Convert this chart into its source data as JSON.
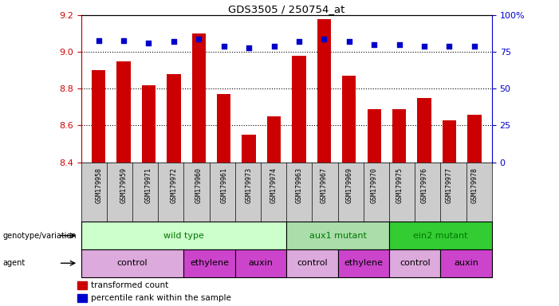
{
  "title": "GDS3505 / 250754_at",
  "samples": [
    "GSM179958",
    "GSM179959",
    "GSM179971",
    "GSM179972",
    "GSM179960",
    "GSM179961",
    "GSM179973",
    "GSM179974",
    "GSM179963",
    "GSM179967",
    "GSM179969",
    "GSM179970",
    "GSM179975",
    "GSM179976",
    "GSM179977",
    "GSM179978"
  ],
  "transformed_counts": [
    8.9,
    8.95,
    8.82,
    8.88,
    9.1,
    8.77,
    8.55,
    8.65,
    8.98,
    9.18,
    8.87,
    8.69,
    8.69,
    8.75,
    8.63,
    8.66
  ],
  "percentile_ranks": [
    83,
    83,
    81,
    82,
    84,
    79,
    78,
    79,
    82,
    84,
    82,
    80,
    80,
    79,
    79,
    79
  ],
  "ylim_left": [
    8.4,
    9.2
  ],
  "ylim_right": [
    0,
    100
  ],
  "yticks_left": [
    8.4,
    8.6,
    8.8,
    9.0,
    9.2
  ],
  "yticks_right": [
    0,
    25,
    50,
    75,
    100
  ],
  "bar_color": "#cc0000",
  "dot_color": "#0000cc",
  "xlabel_color": "#cc0000",
  "right_axis_color": "#0000cc",
  "group_defs": [
    {
      "label": "wild type",
      "start": 0,
      "end": 8,
      "color": "#ccffcc",
      "text_color": "#007700"
    },
    {
      "label": "aux1 mutant",
      "start": 8,
      "end": 12,
      "color": "#aaddaa",
      "text_color": "#007700"
    },
    {
      "label": "ein2 mutant",
      "start": 12,
      "end": 16,
      "color": "#33cc33",
      "text_color": "#007700"
    }
  ],
  "agent_defs": [
    {
      "label": "control",
      "start": 0,
      "end": 4,
      "color": "#ddaadd"
    },
    {
      "label": "ethylene",
      "start": 4,
      "end": 6,
      "color": "#cc44cc"
    },
    {
      "label": "auxin",
      "start": 6,
      "end": 8,
      "color": "#cc44cc"
    },
    {
      "label": "control",
      "start": 8,
      "end": 10,
      "color": "#ddaadd"
    },
    {
      "label": "ethylene",
      "start": 10,
      "end": 12,
      "color": "#cc44cc"
    },
    {
      "label": "control",
      "start": 12,
      "end": 14,
      "color": "#ddaadd"
    },
    {
      "label": "auxin",
      "start": 14,
      "end": 16,
      "color": "#cc44cc"
    }
  ]
}
